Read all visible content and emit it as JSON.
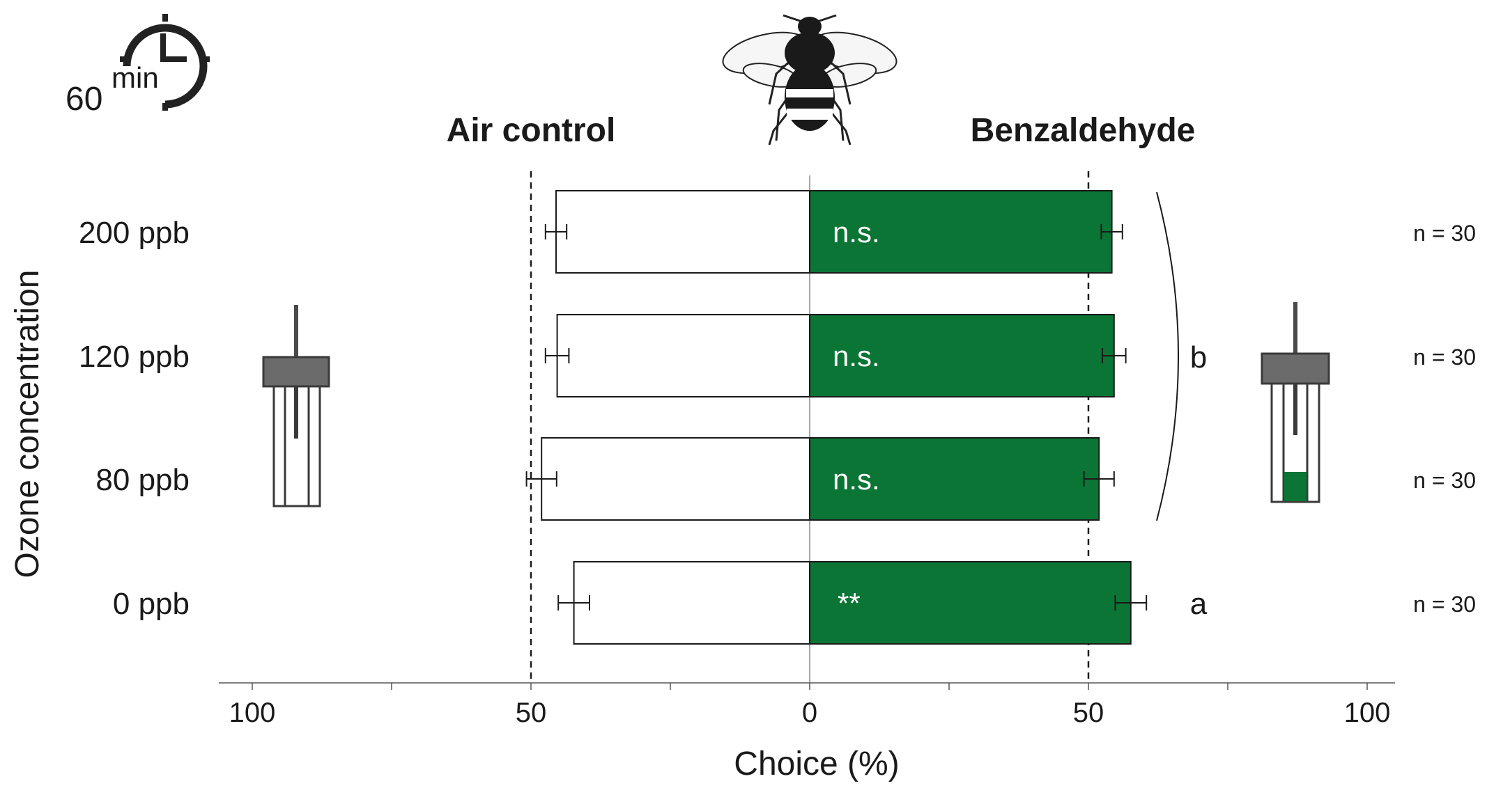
{
  "timer": {
    "value": "60",
    "unit": "min"
  },
  "labels": {
    "left_title": "Air control",
    "right_title": "Benzaldehyde"
  },
  "colors": {
    "treatment": "#0a7535",
    "control": "#ffffff",
    "stroke": "#1a1a1a",
    "tube_cap": "#6b6b6b"
  },
  "icons": {
    "timer": "clock-icon",
    "insect": "bumblebee-icon",
    "left_tube": "empty-tube-icon",
    "right_tube": "odor-tube-icon"
  },
  "chart_data": {
    "type": "bar",
    "orientation": "horizontal-diverging",
    "categories": [
      "200 ppb",
      "120 ppb",
      "80 ppb",
      "0 ppb"
    ],
    "series": [
      {
        "name": "Air control",
        "values": [
          45.5,
          45.3,
          48.1,
          42.3
        ],
        "errors": [
          1.9,
          2.1,
          2.7,
          2.8
        ]
      },
      {
        "name": "Benzaldehyde",
        "values": [
          54.2,
          54.6,
          51.9,
          57.6
        ],
        "errors": [
          1.9,
          2.1,
          2.7,
          2.8
        ]
      }
    ],
    "annotations": [
      "n.s.",
      "n.s.",
      "n.s.",
      "**"
    ],
    "sample_sizes": [
      "n = 30",
      "n = 30",
      "n = 30",
      "n = 30"
    ],
    "group_letters": {
      "bracket_label": "b",
      "bracket_categories": [
        "200 ppb",
        "120 ppb",
        "80 ppb"
      ],
      "single": {
        "category": "0 ppb",
        "label": "a"
      }
    },
    "xlabel": "Choice (%)",
    "ylabel": "Ozone concentration",
    "xlim": [
      -100,
      100
    ],
    "ticks": [
      -100,
      -50,
      0,
      50,
      100
    ],
    "tick_labels": [
      "100",
      "50",
      "0",
      "50",
      "100"
    ],
    "reference_lines": [
      -50,
      50
    ]
  }
}
